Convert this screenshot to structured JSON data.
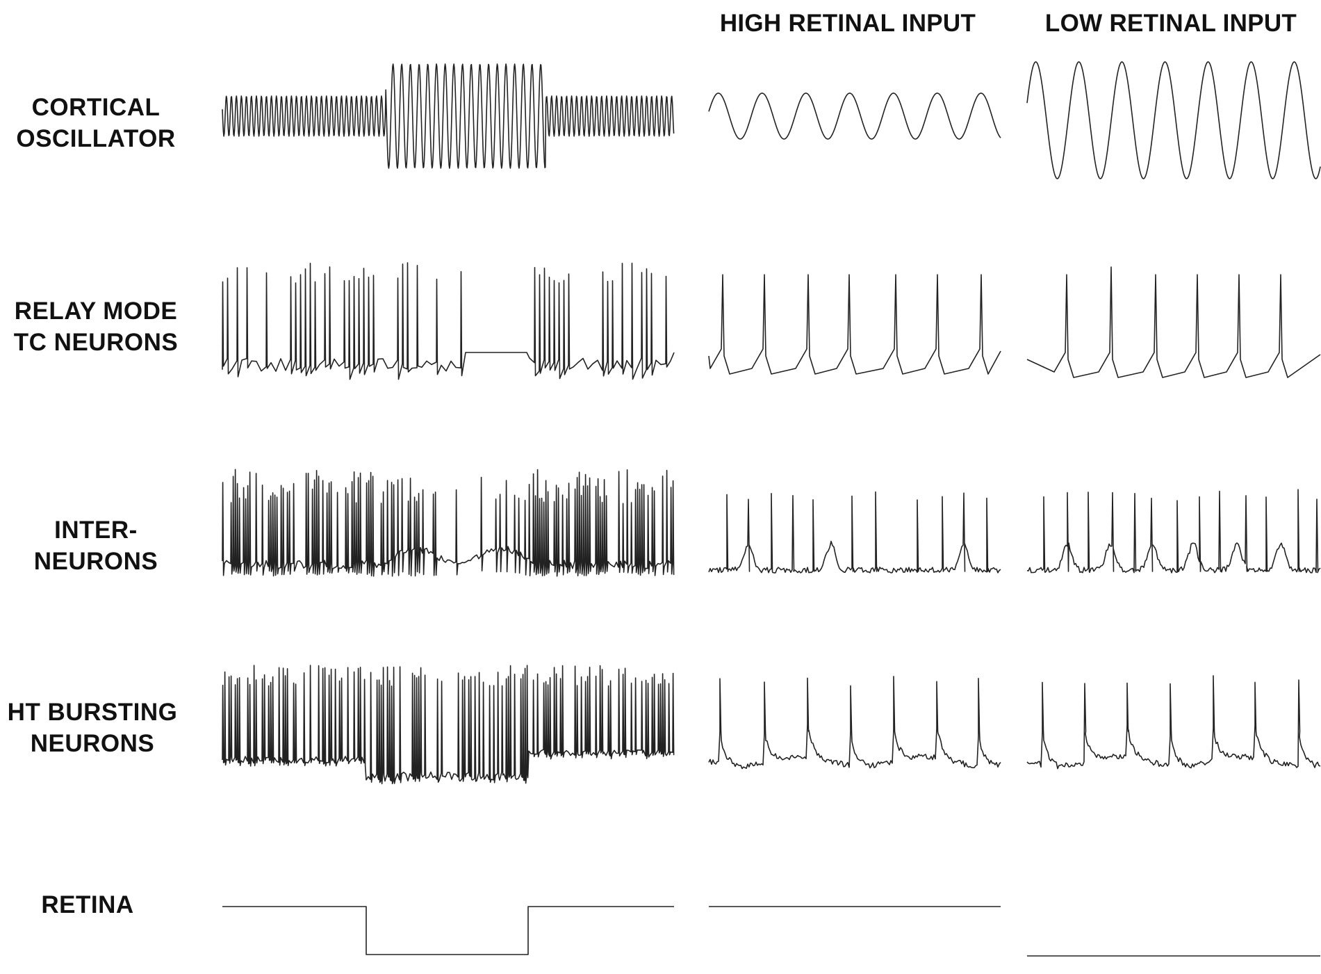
{
  "columns": {
    "high": "HIGH RETINAL INPUT",
    "low": "LOW RETINAL INPUT"
  },
  "rows": {
    "cortical": [
      "CORTICAL",
      "OSCILLATOR"
    ],
    "relay": [
      "RELAY MODE",
      "TC NEURONS"
    ],
    "inter": [
      "INTER-",
      "NEURONS"
    ],
    "ht": [
      "HT BURSTING",
      "NEURONS"
    ],
    "retina": [
      "RETINA"
    ]
  },
  "colors": {
    "trace": "#222222",
    "text": "#111111",
    "background": "#ffffff"
  }
}
